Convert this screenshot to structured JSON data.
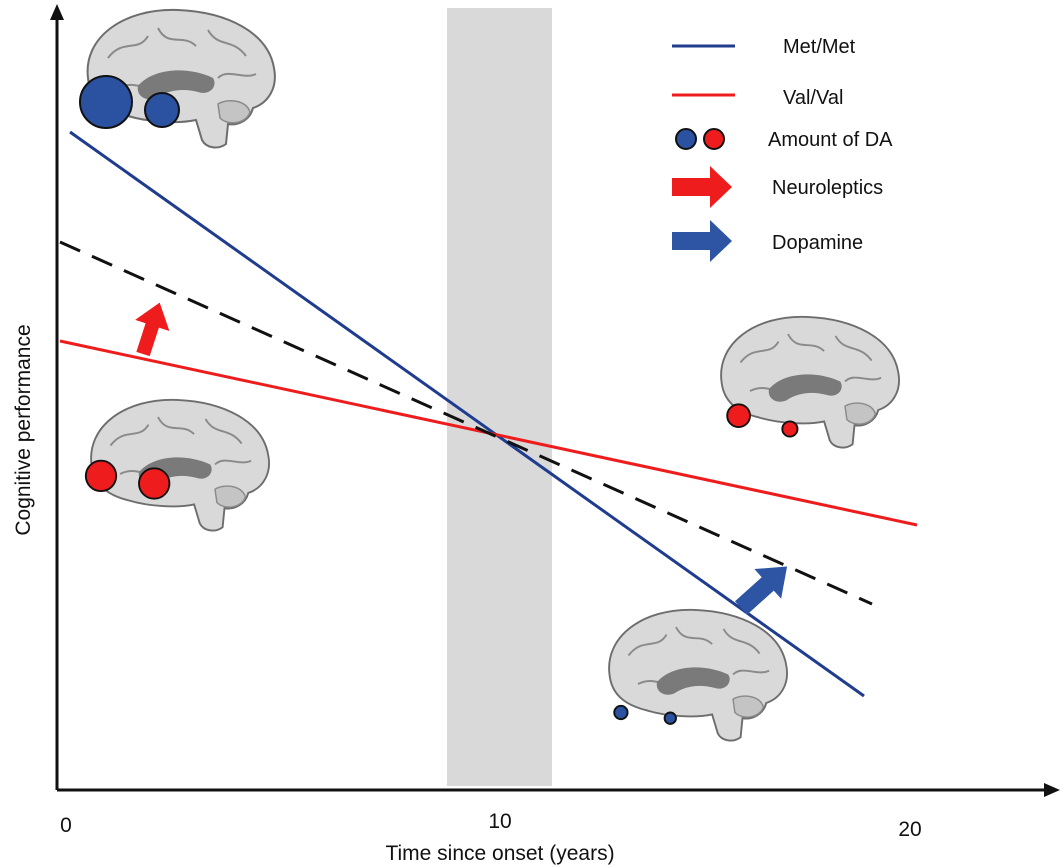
{
  "figure": {
    "x_axis_label": "Time since onset (years)",
    "y_axis_label": "Cognitive performance",
    "x_ticks": [
      "0",
      "10",
      "20"
    ],
    "shaded_band": "grey band around 10 years"
  },
  "legend": {
    "items": [
      {
        "label": "Met/Met",
        "symbol": "line",
        "color": "#1f3c8f"
      },
      {
        "label": "Val/Val",
        "symbol": "line",
        "color": "#ee1c1c"
      },
      {
        "label": "Amount of DA",
        "symbol": "circles",
        "colors": [
          "#2a52a0",
          "#ee1c1c"
        ]
      },
      {
        "label": "Neuroleptics",
        "symbol": "arrow",
        "color": "#ee1c1c"
      },
      {
        "label": "Dopamine",
        "symbol": "arrow",
        "color": "#2d55a3"
      }
    ]
  },
  "lines": {
    "met_met": {
      "color": "#1f3c8f",
      "style": "solid"
    },
    "val_val": {
      "color": "#ee1c1c",
      "style": "solid"
    },
    "reference": {
      "color": "#111111",
      "style": "dashed"
    }
  },
  "brains": [
    {
      "name": "brain-met-met-early",
      "dots_color": "#2a52a0",
      "dopamine_amount": "high"
    },
    {
      "name": "brain-val-val-early",
      "dots_color": "#ee1c1c",
      "dopamine_amount": "high"
    },
    {
      "name": "brain-val-val-late",
      "dots_color": "#ee1c1c",
      "dopamine_amount": "medium"
    },
    {
      "name": "brain-met-met-late",
      "dots_color": "#2a52a0",
      "dopamine_amount": "low"
    }
  ],
  "arrows": [
    {
      "name": "neuroleptics-arrow",
      "color": "#ee1c1c"
    },
    {
      "name": "dopamine-arrow",
      "color": "#2d55a3"
    }
  ]
}
